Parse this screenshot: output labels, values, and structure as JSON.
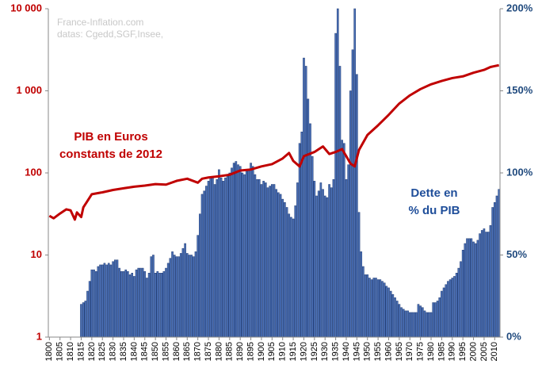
{
  "chart_data": {
    "type": "bar-line-dual",
    "annotations": [
      "France-Inflation.com",
      "datas: Cgedd,SGF,Insee,"
    ],
    "xlim": [
      1799.5,
      2012.5
    ],
    "xticks": [
      1800,
      1805,
      1810,
      1815,
      1820,
      1825,
      1830,
      1835,
      1840,
      1845,
      1850,
      1855,
      1860,
      1865,
      1870,
      1875,
      1880,
      1885,
      1890,
      1895,
      1900,
      1905,
      1910,
      1915,
      1920,
      1925,
      1930,
      1935,
      1940,
      1945,
      1950,
      1955,
      1960,
      1965,
      1970,
      1975,
      1980,
      1985,
      1990,
      1995,
      2000,
      2005,
      2010
    ],
    "ylim": [
      1,
      10000
    ],
    "log_y": true,
    "yticks": [
      1,
      10,
      100,
      {
        "value": 1000,
        "label": "1 000"
      },
      {
        "value": 10000,
        "label": "10 000"
      }
    ],
    "y2lim": [
      0,
      200
    ],
    "y2ticks": [
      {
        "value": 0,
        "label": "0%"
      },
      {
        "value": 50,
        "label": "50%"
      },
      {
        "value": 100,
        "label": "100%"
      },
      {
        "value": 150,
        "label": "150%"
      },
      {
        "value": 200,
        "label": "200%"
      }
    ],
    "series": [
      {
        "label_lines": [
          "PIB en Euros",
          "constants de 2012"
        ],
        "kind": "line",
        "color": "#c00000",
        "x": [
          1800,
          1802,
          1805,
          1808,
          1810,
          1812,
          1813,
          1815,
          1816,
          1820,
          1825,
          1830,
          1835,
          1840,
          1845,
          1850,
          1855,
          1860,
          1865,
          1870,
          1872,
          1875,
          1880,
          1885,
          1890,
          1895,
          1900,
          1905,
          1910,
          1913,
          1915,
          1918,
          1920,
          1925,
          1929,
          1932,
          1935,
          1938,
          1940,
          1942,
          1944,
          1946,
          1950,
          1955,
          1960,
          1965,
          1970,
          1975,
          1980,
          1985,
          1990,
          1995,
          2000,
          2005,
          2008,
          2010,
          2012
        ],
        "values": [
          30,
          28,
          32,
          36,
          35,
          27,
          33,
          29,
          38,
          55,
          58,
          62,
          65,
          68,
          70,
          73,
          72,
          80,
          85,
          76,
          85,
          88,
          91,
          95,
          107,
          110,
          120,
          128,
          150,
          175,
          140,
          120,
          160,
          180,
          210,
          170,
          180,
          195,
          160,
          130,
          120,
          190,
          290,
          380,
          510,
          700,
          880,
          1050,
          1200,
          1320,
          1430,
          1500,
          1660,
          1800,
          1950,
          2000,
          2050
        ]
      },
      {
        "label_lines": [
          "Dette en",
          "% du PIB"
        ],
        "kind": "bar",
        "axis": "y2",
        "color": "#4a6fb5",
        "x": [
          1815,
          1816,
          1817,
          1818,
          1819,
          1820,
          1821,
          1822,
          1823,
          1824,
          1825,
          1826,
          1827,
          1828,
          1829,
          1830,
          1831,
          1832,
          1833,
          1834,
          1835,
          1836,
          1837,
          1838,
          1839,
          1840,
          1841,
          1842,
          1843,
          1844,
          1845,
          1846,
          1847,
          1848,
          1849,
          1850,
          1851,
          1852,
          1853,
          1854,
          1855,
          1856,
          1857,
          1858,
          1859,
          1860,
          1861,
          1862,
          1863,
          1864,
          1865,
          1866,
          1867,
          1868,
          1869,
          1870,
          1871,
          1872,
          1873,
          1874,
          1875,
          1876,
          1877,
          1878,
          1879,
          1880,
          1881,
          1882,
          1883,
          1884,
          1885,
          1886,
          1887,
          1888,
          1889,
          1890,
          1891,
          1892,
          1893,
          1894,
          1895,
          1896,
          1897,
          1898,
          1899,
          1900,
          1901,
          1902,
          1903,
          1904,
          1905,
          1906,
          1907,
          1908,
          1909,
          1910,
          1911,
          1912,
          1913,
          1914,
          1915,
          1916,
          1917,
          1918,
          1919,
          1920,
          1921,
          1922,
          1923,
          1924,
          1925,
          1926,
          1927,
          1928,
          1929,
          1930,
          1931,
          1932,
          1933,
          1934,
          1935,
          1936,
          1937,
          1938,
          1939,
          1940,
          1941,
          1942,
          1943,
          1944,
          1945,
          1946,
          1947,
          1948,
          1949,
          1950,
          1951,
          1952,
          1953,
          1954,
          1955,
          1956,
          1957,
          1958,
          1959,
          1960,
          1961,
          1962,
          1963,
          1964,
          1965,
          1966,
          1967,
          1968,
          1969,
          1970,
          1971,
          1972,
          1973,
          1974,
          1975,
          1976,
          1977,
          1978,
          1979,
          1980,
          1981,
          1982,
          1983,
          1984,
          1985,
          1986,
          1987,
          1988,
          1989,
          1990,
          1991,
          1992,
          1993,
          1994,
          1995,
          1996,
          1997,
          1998,
          1999,
          2000,
          2001,
          2002,
          2003,
          2004,
          2005,
          2006,
          2007,
          2008,
          2009,
          2010,
          2011,
          2012
        ],
        "values": [
          20,
          21,
          22,
          28,
          34,
          41,
          41,
          40,
          43,
          44,
          44,
          45,
          44,
          45,
          44,
          46,
          47,
          47,
          42,
          40,
          40,
          41,
          40,
          38,
          39,
          37,
          41,
          42,
          42,
          42,
          40,
          36,
          39,
          49,
          50,
          39,
          40,
          39,
          39,
          40,
          42,
          45,
          48,
          52,
          50,
          49,
          49,
          51,
          54,
          57,
          51,
          50,
          50,
          49,
          52,
          62,
          75,
          87,
          89,
          92,
          95,
          97,
          97,
          93,
          96,
          102,
          97,
          95,
          97,
          98,
          100,
          103,
          106,
          107,
          105,
          104,
          100,
          99,
          101,
          102,
          106,
          104,
          99,
          96,
          96,
          93,
          95,
          94,
          91,
          92,
          93,
          93,
          90,
          88,
          87,
          84,
          82,
          79,
          75,
          73,
          72,
          80,
          94,
          118,
          125,
          170,
          165,
          145,
          130,
          110,
          95,
          86,
          89,
          94,
          90,
          86,
          85,
          93,
          91,
          96,
          185,
          200,
          165,
          120,
          118,
          96,
          105,
          150,
          175,
          200,
          160,
          76,
          52,
          43,
          38,
          38,
          36,
          35,
          36,
          36,
          35,
          35,
          34,
          33,
          31,
          30,
          28,
          26,
          24,
          22,
          20,
          18,
          17,
          16,
          16,
          15,
          15,
          15,
          15,
          20,
          19,
          18,
          16,
          15,
          15,
          15,
          21,
          21,
          22,
          24,
          28,
          30,
          32,
          34,
          35,
          36,
          37,
          39,
          42,
          46,
          53,
          57,
          60,
          60,
          60,
          58,
          57,
          59,
          63,
          65,
          66,
          64,
          64,
          68,
          79,
          82,
          86,
          90
        ]
      }
    ]
  }
}
